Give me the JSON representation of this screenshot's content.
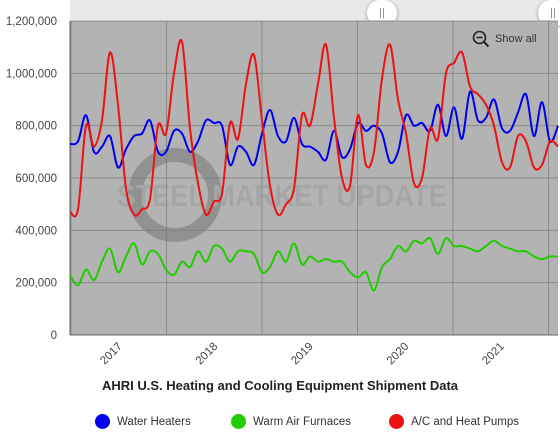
{
  "chart_data": {
    "type": "line",
    "title": "AHRI U.S. Heating and Cooling Equipment Shipment Data",
    "watermark": "STEEL MARKET UPDATE",
    "x_labels": [
      "2017",
      "2018",
      "2019",
      "2020",
      "2021"
    ],
    "y_ticks": [
      "0",
      "200,000",
      "400,000",
      "600,000",
      "800,000",
      "1,000,000",
      "1,200,000"
    ],
    "ylim": [
      0,
      1200000
    ],
    "grid": true,
    "legend_position": "bottom",
    "series": [
      {
        "name": "Water Heaters",
        "color": "#0000ee",
        "values": [
          730000,
          740000,
          840000,
          700000,
          720000,
          760000,
          640000,
          710000,
          760000,
          770000,
          820000,
          700000,
          700000,
          780000,
          770000,
          700000,
          740000,
          820000,
          810000,
          800000,
          650000,
          720000,
          700000,
          650000,
          770000,
          860000,
          760000,
          740000,
          830000,
          730000,
          720000,
          700000,
          670000,
          780000,
          680000,
          710000,
          810000,
          780000,
          800000,
          770000,
          660000,
          700000,
          840000,
          800000,
          810000,
          780000,
          880000,
          760000,
          870000,
          750000,
          930000,
          820000,
          830000,
          900000,
          790000,
          780000,
          850000,
          920000,
          760000,
          890000,
          740000,
          800000
        ]
      },
      {
        "name": "Warm Air Furnaces",
        "color": "#22cc00",
        "values": [
          230000,
          190000,
          250000,
          210000,
          280000,
          330000,
          240000,
          300000,
          350000,
          270000,
          320000,
          310000,
          250000,
          230000,
          280000,
          260000,
          320000,
          280000,
          340000,
          330000,
          280000,
          320000,
          320000,
          310000,
          240000,
          260000,
          320000,
          280000,
          350000,
          270000,
          300000,
          280000,
          290000,
          280000,
          280000,
          240000,
          220000,
          240000,
          170000,
          260000,
          290000,
          340000,
          320000,
          360000,
          350000,
          370000,
          310000,
          370000,
          340000,
          340000,
          330000,
          320000,
          340000,
          360000,
          340000,
          330000,
          320000,
          320000,
          300000,
          290000,
          300000,
          300000
        ]
      },
      {
        "name": "A/C and Heat Pumps",
        "color": "#ee1111",
        "values": [
          470000,
          480000,
          800000,
          720000,
          820000,
          1080000,
          880000,
          560000,
          460000,
          480000,
          520000,
          800000,
          770000,
          1000000,
          1120000,
          790000,
          580000,
          460000,
          510000,
          540000,
          810000,
          750000,
          960000,
          1070000,
          820000,
          570000,
          460000,
          500000,
          560000,
          840000,
          800000,
          960000,
          1110000,
          830000,
          600000,
          570000,
          840000,
          650000,
          700000,
          980000,
          1110000,
          900000,
          770000,
          580000,
          600000,
          790000,
          750000,
          1000000,
          1040000,
          1080000,
          950000,
          920000,
          880000,
          800000,
          660000,
          640000,
          760000,
          740000,
          640000,
          650000,
          740000,
          720000
        ]
      }
    ]
  },
  "controls": {
    "show_all_label": "Show all",
    "scroll_handle_glyph": "||"
  }
}
